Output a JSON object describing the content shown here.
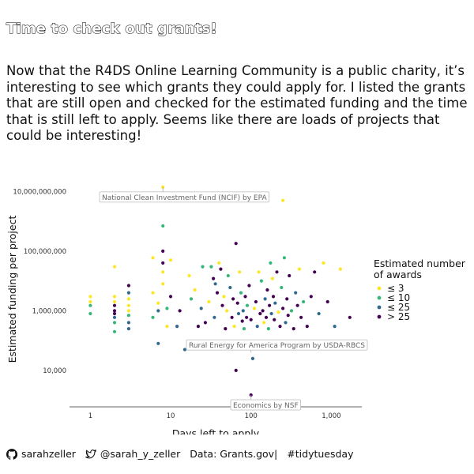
{
  "title": "Time to check out grants!",
  "subtitle": "Now that the R4DS Online Learning Community is a public charity, it’s interesting to see which grants they could apply for. I listed the grants that are still open and checked for the estimated funding and the time that is still left to apply. Seems like there are loads of projects that could be interesting!",
  "footer": {
    "github_icon": "github-icon",
    "github_user": "sarahzeller",
    "twitter_icon": "twitter-icon",
    "twitter_user": "@sarah_y_zeller",
    "data_source": "Data: Grants.gov|",
    "hashtag": "#tidytuesday"
  },
  "chart_data": {
    "type": "scatter",
    "xlabel": "Days left to apply",
    "ylabel": "Estimated funding per project",
    "x_scale": "log10",
    "y_scale": "log10",
    "xlim": [
      0.55,
      2400
    ],
    "ylim": [
      600,
      60000000000
    ],
    "x_ticks": [
      1,
      10,
      100,
      1000
    ],
    "x_tick_labels": [
      "1",
      "10",
      "100",
      "1,000"
    ],
    "y_ticks": [
      10000,
      1000000,
      100000000,
      10000000000
    ],
    "y_tick_labels": [
      "10,000",
      "1,000,000",
      "100,000,000",
      "10,000,000,000"
    ],
    "grid": false,
    "legend": {
      "title": "Estimated number\nof awards",
      "position": "right",
      "items": [
        {
          "label": "≤ 3",
          "color": "#fde725"
        },
        {
          "label": "≤ 10",
          "color": "#35b779"
        },
        {
          "label": "≤ 25",
          "color": "#31688e"
        },
        {
          "label": "> 25",
          "color": "#440154"
        }
      ]
    },
    "annotations": [
      {
        "text": "National Clean Investment Fund (NCIF) by EPA",
        "x": 8,
        "y": 14000000000
      },
      {
        "text": "Rural Energy for America Program by USDA-RBCS",
        "x": 100,
        "y": 40000
      },
      {
        "text": "Economics by NSF",
        "x": 100,
        "y": 1500
      }
    ],
    "points": [
      {
        "x": 8,
        "y": 14000000000,
        "g": 0
      },
      {
        "x": 250,
        "y": 5000000000,
        "g": 0
      },
      {
        "x": 8,
        "y": 700000000,
        "g": 1
      },
      {
        "x": 100,
        "y": 1500,
        "g": 3
      },
      {
        "x": 65,
        "y": 10000,
        "g": 3
      },
      {
        "x": 1,
        "y": 3000000,
        "g": 0
      },
      {
        "x": 1,
        "y": 2000000,
        "g": 0
      },
      {
        "x": 1,
        "y": 1500000,
        "g": 1
      },
      {
        "x": 1,
        "y": 800000,
        "g": 1
      },
      {
        "x": 2,
        "y": 30000000,
        "g": 0
      },
      {
        "x": 2,
        "y": 3000000,
        "g": 0
      },
      {
        "x": 2,
        "y": 2000000,
        "g": 0
      },
      {
        "x": 2,
        "y": 1500000,
        "g": 3
      },
      {
        "x": 2,
        "y": 1000000,
        "g": 3
      },
      {
        "x": 2,
        "y": 800000,
        "g": 3
      },
      {
        "x": 2,
        "y": 600000,
        "g": 2
      },
      {
        "x": 2,
        "y": 400000,
        "g": 1
      },
      {
        "x": 2,
        "y": 200000,
        "g": 1
      },
      {
        "x": 3,
        "y": 7000000,
        "g": 3
      },
      {
        "x": 3,
        "y": 4000000,
        "g": 2
      },
      {
        "x": 3,
        "y": 2500000,
        "g": 0
      },
      {
        "x": 3,
        "y": 1500000,
        "g": 0
      },
      {
        "x": 3,
        "y": 1000000,
        "g": 0
      },
      {
        "x": 3,
        "y": 700000,
        "g": 1
      },
      {
        "x": 3,
        "y": 400000,
        "g": 2
      },
      {
        "x": 3,
        "y": 250000,
        "g": 2
      },
      {
        "x": 6,
        "y": 60000000,
        "g": 0
      },
      {
        "x": 6,
        "y": 4000000,
        "g": 0
      },
      {
        "x": 6,
        "y": 600000,
        "g": 1
      },
      {
        "x": 7,
        "y": 1800000,
        "g": 0
      },
      {
        "x": 7,
        "y": 1000000,
        "g": 2
      },
      {
        "x": 7,
        "y": 80000,
        "g": 2
      },
      {
        "x": 8,
        "y": 100000000,
        "g": 3
      },
      {
        "x": 8,
        "y": 40000000,
        "g": 3
      },
      {
        "x": 8,
        "y": 20000000,
        "g": 0
      },
      {
        "x": 8,
        "y": 8000000,
        "g": 0
      },
      {
        "x": 9,
        "y": 1200000,
        "g": 1
      },
      {
        "x": 9,
        "y": 300000,
        "g": 0
      },
      {
        "x": 10,
        "y": 50000000,
        "g": 0
      },
      {
        "x": 10,
        "y": 3000000,
        "g": 3
      },
      {
        "x": 12,
        "y": 300000,
        "g": 2
      },
      {
        "x": 13,
        "y": 1000000,
        "g": 3
      },
      {
        "x": 15,
        "y": 50000,
        "g": 2
      },
      {
        "x": 17,
        "y": 15000000,
        "g": 0
      },
      {
        "x": 18,
        "y": 2500000,
        "g": 1
      },
      {
        "x": 20,
        "y": 5000000,
        "g": 0
      },
      {
        "x": 22,
        "y": 300000,
        "g": 3
      },
      {
        "x": 24,
        "y": 1200000,
        "g": 2
      },
      {
        "x": 25,
        "y": 30000000,
        "g": 1
      },
      {
        "x": 27,
        "y": 400000,
        "g": 3
      },
      {
        "x": 30,
        "y": 2000000,
        "g": 0
      },
      {
        "x": 32,
        "y": 30000000,
        "g": 1
      },
      {
        "x": 34,
        "y": 12000000,
        "g": 3
      },
      {
        "x": 35,
        "y": 600000,
        "g": 2
      },
      {
        "x": 36,
        "y": 8000000,
        "g": 2
      },
      {
        "x": 38,
        "y": 4000000,
        "g": 3
      },
      {
        "x": 40,
        "y": 40000000,
        "g": 0
      },
      {
        "x": 42,
        "y": 25000000,
        "g": 3
      },
      {
        "x": 44,
        "y": 1500000,
        "g": 3
      },
      {
        "x": 46,
        "y": 3000000,
        "g": 0
      },
      {
        "x": 48,
        "y": 250000,
        "g": 3
      },
      {
        "x": 50,
        "y": 1000000,
        "g": 0
      },
      {
        "x": 52,
        "y": 15000000,
        "g": 1
      },
      {
        "x": 55,
        "y": 6000000,
        "g": 2
      },
      {
        "x": 58,
        "y": 600000,
        "g": 3
      },
      {
        "x": 60,
        "y": 2500000,
        "g": 3
      },
      {
        "x": 62,
        "y": 300000,
        "g": 0
      },
      {
        "x": 65,
        "y": 180000000,
        "g": 3
      },
      {
        "x": 68,
        "y": 1800000,
        "g": 3
      },
      {
        "x": 70,
        "y": 800000,
        "g": 2
      },
      {
        "x": 72,
        "y": 20000000,
        "g": 0
      },
      {
        "x": 75,
        "y": 4000000,
        "g": 1
      },
      {
        "x": 78,
        "y": 450000,
        "g": 3
      },
      {
        "x": 80,
        "y": 1000000,
        "g": 2
      },
      {
        "x": 82,
        "y": 250000,
        "g": 1
      },
      {
        "x": 85,
        "y": 3000000,
        "g": 3
      },
      {
        "x": 88,
        "y": 600000,
        "g": 3
      },
      {
        "x": 90,
        "y": 1500000,
        "g": 1
      },
      {
        "x": 95,
        "y": 7000000,
        "g": 3
      },
      {
        "x": 100,
        "y": 500000,
        "g": 3
      },
      {
        "x": 105,
        "y": 25000,
        "g": 2
      },
      {
        "x": 110,
        "y": 1200000,
        "g": 0
      },
      {
        "x": 115,
        "y": 2000000,
        "g": 3
      },
      {
        "x": 120,
        "y": 300000,
        "g": 2
      },
      {
        "x": 125,
        "y": 20000000,
        "g": 0
      },
      {
        "x": 130,
        "y": 800000,
        "g": 3
      },
      {
        "x": 135,
        "y": 10000000,
        "g": 1
      },
      {
        "x": 140,
        "y": 1000000,
        "g": 3
      },
      {
        "x": 145,
        "y": 400000,
        "g": 0
      },
      {
        "x": 150,
        "y": 2500000,
        "g": 2
      },
      {
        "x": 155,
        "y": 600000,
        "g": 3
      },
      {
        "x": 160,
        "y": 5000000,
        "g": 3
      },
      {
        "x": 165,
        "y": 250000,
        "g": 1
      },
      {
        "x": 170,
        "y": 1500000,
        "g": 3
      },
      {
        "x": 175,
        "y": 40000000,
        "g": 1
      },
      {
        "x": 180,
        "y": 800000,
        "g": 2
      },
      {
        "x": 185,
        "y": 12000000,
        "g": 0
      },
      {
        "x": 190,
        "y": 3000000,
        "g": 3
      },
      {
        "x": 195,
        "y": 500000,
        "g": 3
      },
      {
        "x": 200,
        "y": 1800000,
        "g": 2
      },
      {
        "x": 210,
        "y": 20000000,
        "g": 3
      },
      {
        "x": 220,
        "y": 900000,
        "g": 0
      },
      {
        "x": 230,
        "y": 300000,
        "g": 3
      },
      {
        "x": 240,
        "y": 6000000,
        "g": 1
      },
      {
        "x": 250,
        "y": 1200000,
        "g": 3
      },
      {
        "x": 260,
        "y": 60000000,
        "g": 1
      },
      {
        "x": 270,
        "y": 400000,
        "g": 2
      },
      {
        "x": 280,
        "y": 2500000,
        "g": 3
      },
      {
        "x": 290,
        "y": 700000,
        "g": 3
      },
      {
        "x": 300,
        "y": 15000000,
        "g": 3
      },
      {
        "x": 320,
        "y": 1000000,
        "g": 1
      },
      {
        "x": 340,
        "y": 250000,
        "g": 3
      },
      {
        "x": 360,
        "y": 4000000,
        "g": 2
      },
      {
        "x": 380,
        "y": 1500000,
        "g": 3
      },
      {
        "x": 400,
        "y": 25000000,
        "g": 0
      },
      {
        "x": 420,
        "y": 600000,
        "g": 3
      },
      {
        "x": 450,
        "y": 2000000,
        "g": 1
      },
      {
        "x": 500,
        "y": 300000,
        "g": 3
      },
      {
        "x": 560,
        "y": 3000000,
        "g": 3
      },
      {
        "x": 620,
        "y": 20000000,
        "g": 3
      },
      {
        "x": 700,
        "y": 800000,
        "g": 2
      },
      {
        "x": 800,
        "y": 40000000,
        "g": 0
      },
      {
        "x": 900,
        "y": 2000000,
        "g": 3
      },
      {
        "x": 1100,
        "y": 300000,
        "g": 2
      },
      {
        "x": 1300,
        "y": 25000000,
        "g": 0
      },
      {
        "x": 1700,
        "y": 600000,
        "g": 3
      }
    ]
  }
}
